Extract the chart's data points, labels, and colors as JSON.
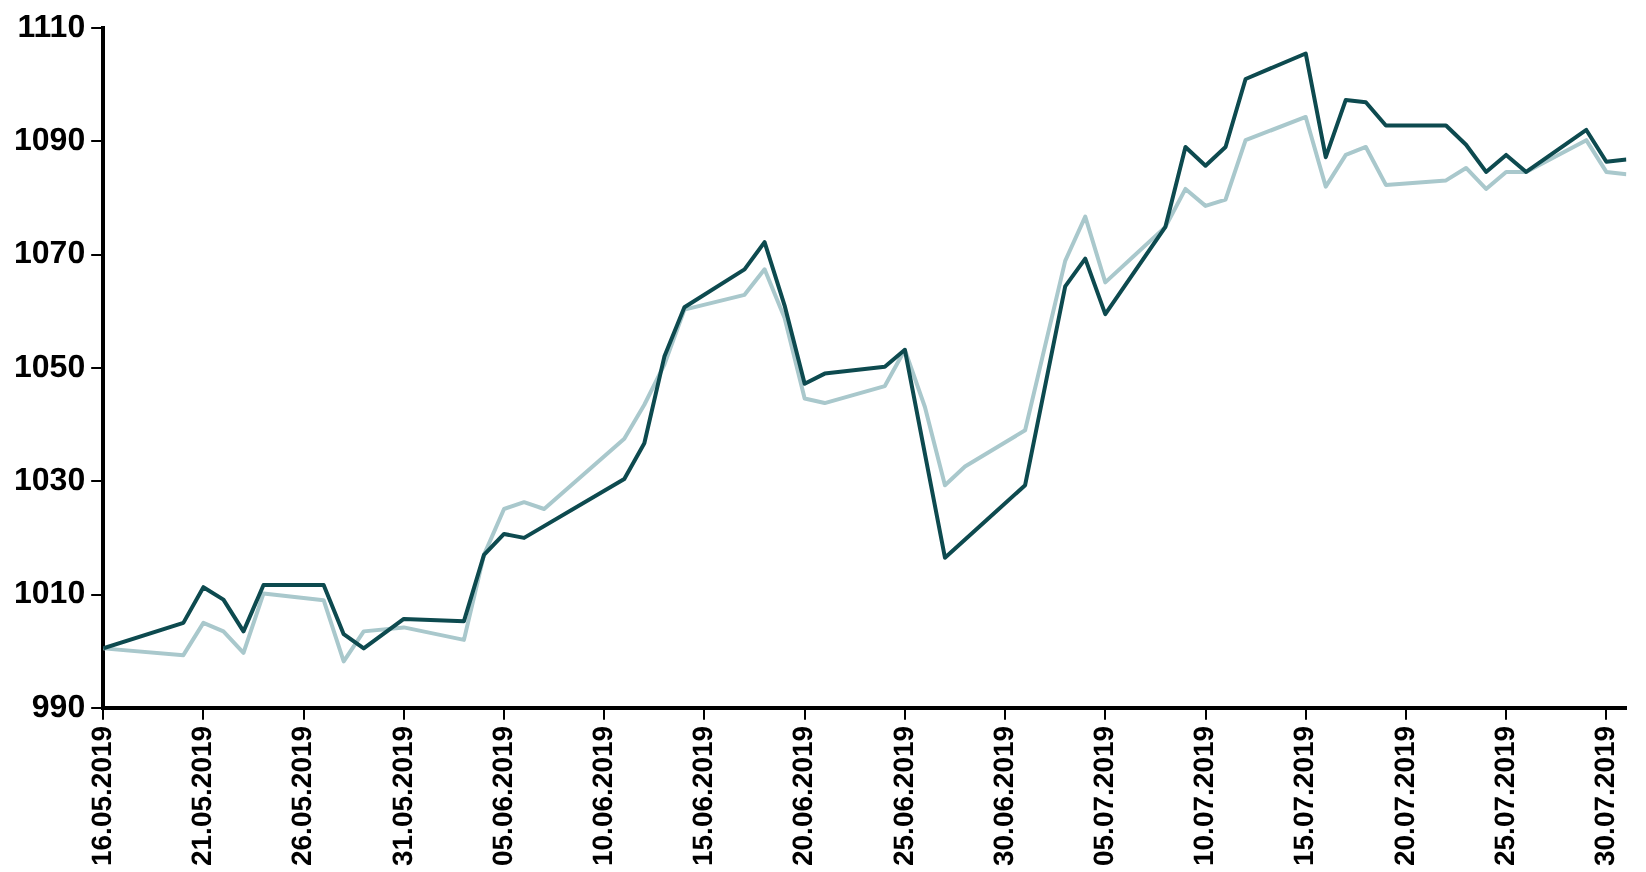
{
  "chart_data": {
    "type": "line",
    "xlim": [
      "2019-05-16",
      "2019-07-31"
    ],
    "ylim": [
      990,
      1110
    ],
    "yticks": [
      990,
      1010,
      1030,
      1050,
      1070,
      1090,
      1110
    ],
    "xticks": [
      {
        "value": "2019-05-16",
        "label": "16.05.2019"
      },
      {
        "value": "2019-05-21",
        "label": "21.05.2019"
      },
      {
        "value": "2019-05-26",
        "label": "26.05.2019"
      },
      {
        "value": "2019-05-31",
        "label": "31.05.2019"
      },
      {
        "value": "2019-06-05",
        "label": "05.06.2019"
      },
      {
        "value": "2019-06-10",
        "label": "10.06.2019"
      },
      {
        "value": "2019-06-15",
        "label": "15.06.2019"
      },
      {
        "value": "2019-06-20",
        "label": "20.06.2019"
      },
      {
        "value": "2019-06-25",
        "label": "25.06.2019"
      },
      {
        "value": "2019-06-30",
        "label": "30.06.2019"
      },
      {
        "value": "2019-07-05",
        "label": "05.07.2019"
      },
      {
        "value": "2019-07-10",
        "label": "10.07.2019"
      },
      {
        "value": "2019-07-15",
        "label": "15.07.2019"
      },
      {
        "value": "2019-07-20",
        "label": "20.07.2019"
      },
      {
        "value": "2019-07-25",
        "label": "25.07.2019"
      },
      {
        "value": "2019-07-30",
        "label": "30.07.2019"
      }
    ],
    "grid": false,
    "marker": "none",
    "line_style": "solid",
    "series": [
      {
        "color": "#0d4a4f",
        "x": [
          "2019-05-16",
          "2019-05-20",
          "2019-05-21",
          "2019-05-22",
          "2019-05-23",
          "2019-05-24",
          "2019-05-27",
          "2019-05-28",
          "2019-05-29",
          "2019-05-31",
          "2019-06-03",
          "2019-06-04",
          "2019-06-05",
          "2019-06-06",
          "2019-06-11",
          "2019-06-12",
          "2019-06-13",
          "2019-06-14",
          "2019-06-17",
          "2019-06-18",
          "2019-06-19",
          "2019-06-20",
          "2019-06-21",
          "2019-06-24",
          "2019-06-25",
          "2019-06-27",
          "2019-07-01",
          "2019-07-03",
          "2019-07-04",
          "2019-07-05",
          "2019-07-08",
          "2019-07-09",
          "2019-07-10",
          "2019-07-11",
          "2019-07-12",
          "2019-07-15",
          "2019-07-16",
          "2019-07-17",
          "2019-07-18",
          "2019-07-19",
          "2019-07-22",
          "2019-07-23",
          "2019-07-24",
          "2019-07-25",
          "2019-07-26",
          "2019-07-29",
          "2019-07-30",
          "2019-07-31"
        ],
        "values": [
          1000.5,
          1005,
          1011.3,
          1009.1,
          1003.5,
          1011.7,
          1011.7,
          1003,
          1000.5,
          1005.7,
          1005.3,
          1017,
          1020.7,
          1020,
          1030.4,
          1036.7,
          1052,
          1060.7,
          1067.4,
          1072.2,
          1061,
          1047.2,
          1049,
          1050.2,
          1053.2,
          1016.5,
          1029.3,
          1064.4,
          1069.3,
          1059.5,
          1074.9,
          1089,
          1085.7,
          1089,
          1101,
          1105.5,
          1087.2,
          1097.3,
          1096.9,
          1092.8,
          1092.8,
          1089.4,
          1084.6,
          1087.6,
          1084.6,
          1092,
          1086.4,
          1086.8
        ]
      },
      {
        "color": "#a9c8cc",
        "x": [
          "2019-05-16",
          "2019-05-20",
          "2019-05-21",
          "2019-05-22",
          "2019-05-23",
          "2019-05-24",
          "2019-05-27",
          "2019-05-28",
          "2019-05-29",
          "2019-05-31",
          "2019-06-03",
          "2019-06-04",
          "2019-06-05",
          "2019-06-06",
          "2019-06-07",
          "2019-06-11",
          "2019-06-12",
          "2019-06-13",
          "2019-06-14",
          "2019-06-17",
          "2019-06-18",
          "2019-06-19",
          "2019-06-20",
          "2019-06-21",
          "2019-06-24",
          "2019-06-25",
          "2019-06-26",
          "2019-06-27",
          "2019-06-28",
          "2019-07-01",
          "2019-07-03",
          "2019-07-04",
          "2019-07-05",
          "2019-07-08",
          "2019-07-09",
          "2019-07-10",
          "2019-07-11",
          "2019-07-12",
          "2019-07-15",
          "2019-07-16",
          "2019-07-17",
          "2019-07-18",
          "2019-07-19",
          "2019-07-22",
          "2019-07-23",
          "2019-07-24",
          "2019-07-25",
          "2019-07-26",
          "2019-07-29",
          "2019-07-30",
          "2019-07-31"
        ],
        "values": [
          1000.5,
          999.3,
          1005,
          1003.5,
          999.7,
          1010.2,
          1009,
          998.2,
          1003.5,
          1004.2,
          1002,
          1017,
          1025.1,
          1026.3,
          1025.1,
          1037.5,
          1043.5,
          1050.6,
          1060.3,
          1062.9,
          1067.4,
          1058.8,
          1044.6,
          1043.8,
          1046.8,
          1053.2,
          1043.1,
          1029.3,
          1032.6,
          1039,
          1068.9,
          1076.7,
          1065.1,
          1074.9,
          1081.6,
          1078.6,
          1079.7,
          1090.2,
          1094.3,
          1082,
          1087.6,
          1089,
          1082.3,
          1083.1,
          1085.3,
          1081.6,
          1084.6,
          1084.6,
          1090.2,
          1084.6,
          1084.2
        ]
      }
    ]
  }
}
